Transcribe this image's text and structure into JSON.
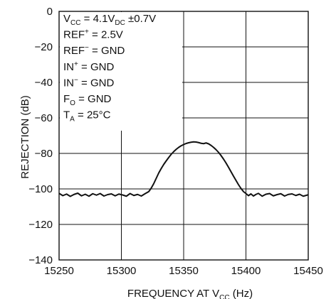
{
  "chart_data": {
    "type": "line",
    "xlabel": "FREQUENCY AT V",
    "xlabel_sub": "CC",
    "xlabel_unit": " (Hz)",
    "ylabel": "REJECTION (dB)",
    "xlim": [
      15250,
      15450
    ],
    "ylim": [
      -140,
      0
    ],
    "x_ticks": [
      15250,
      15300,
      15350,
      15400,
      15450
    ],
    "y_ticks": [
      0,
      -20,
      -40,
      -60,
      -80,
      -100,
      -120,
      -140
    ],
    "x_tick_labels": [
      "15250",
      "15300",
      "15350",
      "15400",
      "15450"
    ],
    "y_tick_labels": [
      "0",
      "−20",
      "−40",
      "−60",
      "−80",
      "−100",
      "−120",
      "−140"
    ],
    "grid": true,
    "annotations": [
      {
        "parts": [
          {
            "t": "V"
          },
          {
            "t": "CC",
            "sub": true
          },
          {
            "t": " = 4.1V"
          },
          {
            "t": "DC",
            "sub": true
          },
          {
            "t": " ±0.7V"
          }
        ]
      },
      {
        "parts": [
          {
            "t": "REF"
          },
          {
            "t": "+",
            "sup": true
          },
          {
            "t": " = 2.5V"
          }
        ]
      },
      {
        "parts": [
          {
            "t": "REF"
          },
          {
            "t": "−",
            "sup": true
          },
          {
            "t": " = GND"
          }
        ]
      },
      {
        "parts": [
          {
            "t": "IN"
          },
          {
            "t": "+",
            "sup": true
          },
          {
            "t": " = GND"
          }
        ]
      },
      {
        "parts": [
          {
            "t": "IN"
          },
          {
            "t": "−",
            "sup": true
          },
          {
            "t": " = GND"
          }
        ]
      },
      {
        "parts": [
          {
            "t": "F"
          },
          {
            "t": "O",
            "sub": true
          },
          {
            "t": " = GND"
          }
        ]
      },
      {
        "parts": [
          {
            "t": "T"
          },
          {
            "t": "A",
            "sub": true
          },
          {
            "t": " = 25°C"
          }
        ]
      }
    ],
    "series": [
      {
        "color": "#111111",
        "x": [
          15250,
          15253,
          15256,
          15259,
          15262,
          15265,
          15268,
          15271,
          15274,
          15277,
          15280,
          15283,
          15286,
          15289,
          15292,
          15295,
          15298,
          15301,
          15304,
          15307,
          15310,
          15313,
          15316,
          15319,
          15322,
          15324,
          15326,
          15328,
          15330,
          15332,
          15334,
          15336,
          15338,
          15340,
          15342,
          15344,
          15346,
          15348,
          15350,
          15352,
          15354,
          15356,
          15358,
          15360,
          15362,
          15364,
          15366,
          15368,
          15370,
          15372,
          15374,
          15376,
          15378,
          15380,
          15382,
          15384,
          15386,
          15388,
          15390,
          15392,
          15394,
          15396,
          15398,
          15400,
          15402,
          15404,
          15406,
          15408,
          15410,
          15413,
          15416,
          15419,
          15422,
          15425,
          15428,
          15431,
          15434,
          15437,
          15440,
          15443,
          15446,
          15450
        ],
        "y": [
          -102.5,
          -103.8,
          -102.9,
          -104.2,
          -103.1,
          -102.4,
          -103.9,
          -103.0,
          -104.1,
          -102.7,
          -103.5,
          -102.6,
          -104.0,
          -103.2,
          -102.8,
          -103.9,
          -102.9,
          -103.4,
          -104.1,
          -102.6,
          -103.7,
          -103.1,
          -104.0,
          -102.7,
          -101.5,
          -99.5,
          -97.0,
          -94.0,
          -91.0,
          -88.5,
          -86.2,
          -84.2,
          -82.3,
          -80.5,
          -79.0,
          -77.7,
          -76.6,
          -75.7,
          -75.0,
          -74.4,
          -74.0,
          -73.7,
          -73.5,
          -73.6,
          -73.9,
          -74.3,
          -74.5,
          -74.1,
          -74.6,
          -75.5,
          -76.6,
          -77.9,
          -79.4,
          -81.2,
          -83.2,
          -85.4,
          -87.8,
          -90.3,
          -92.8,
          -95.2,
          -97.6,
          -99.7,
          -101.5,
          -102.6,
          -103.8,
          -102.8,
          -104.0,
          -103.1,
          -102.5,
          -104.1,
          -103.0,
          -102.6,
          -103.9,
          -103.2,
          -102.7,
          -104.0,
          -103.1,
          -102.8,
          -103.7,
          -103.0,
          -104.1,
          -103.3
        ]
      }
    ]
  }
}
